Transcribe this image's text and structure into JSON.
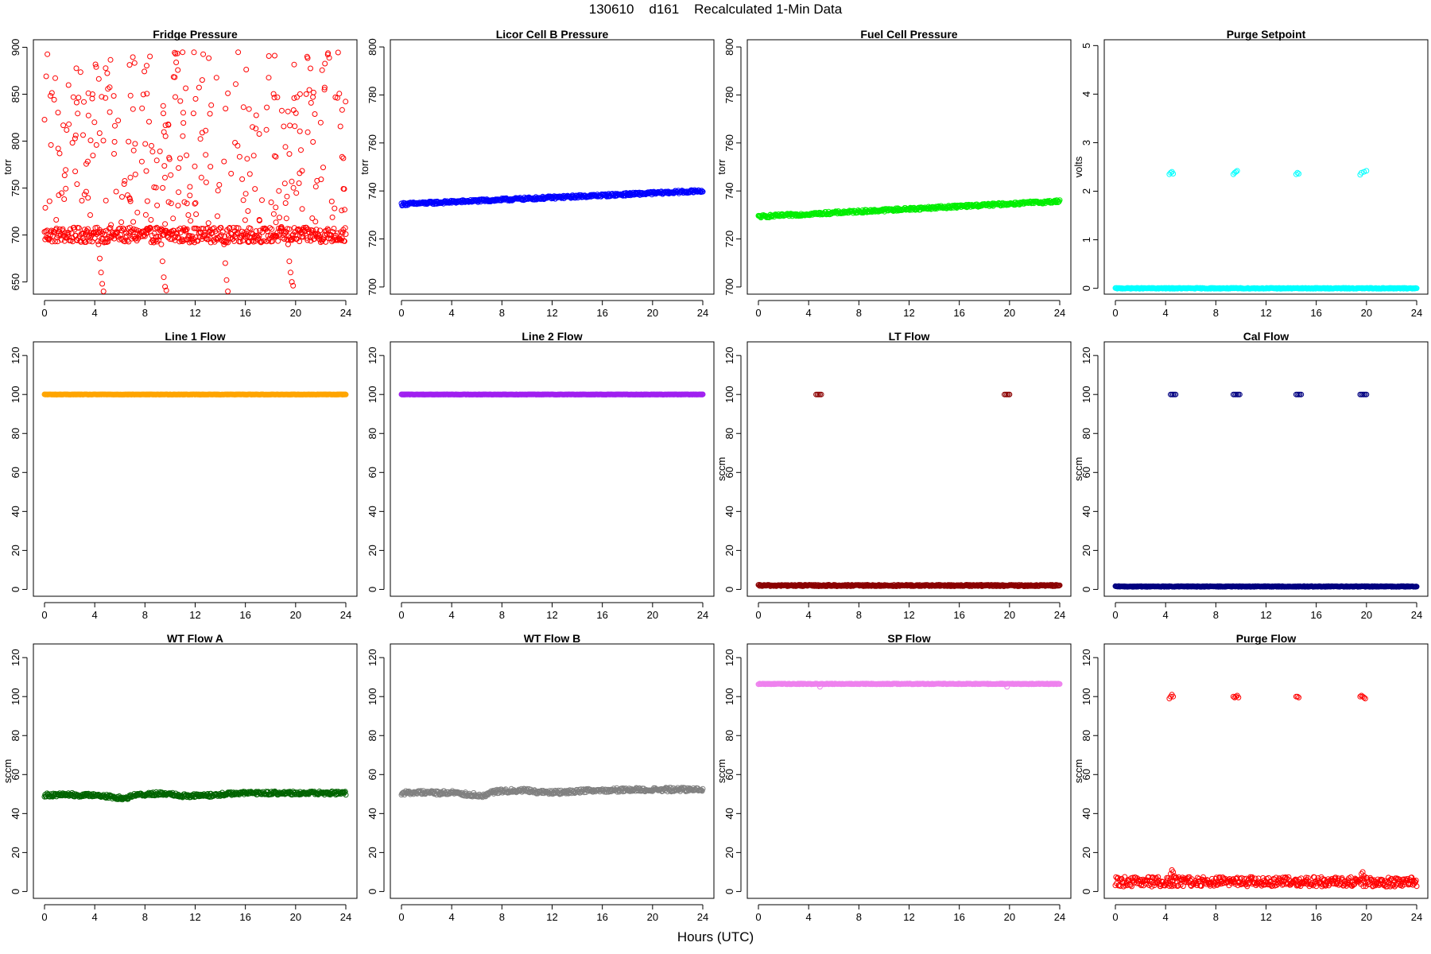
{
  "figure": {
    "title": "130610    d161    Recalculated 1-Min Data",
    "xlabel": "Hours (UTC)"
  },
  "chart_data": [
    {
      "type": "scatter",
      "title": "Fridge Pressure",
      "xlabel": "",
      "ylabel": "torr",
      "xlim": [
        0,
        24
      ],
      "ylim": [
        637,
        908
      ],
      "xticks": [
        0,
        4,
        8,
        12,
        16,
        20,
        24
      ],
      "yticks": [
        650,
        700,
        750,
        800,
        850,
        900
      ],
      "color": "#ff0000",
      "marker": "open-circle",
      "grid": false,
      "series": [
        {
          "kind": "band",
          "from": 0,
          "to": 24,
          "y": 700,
          "jitter": 8
        },
        {
          "kind": "scatter-range",
          "from": 0,
          "to": 24,
          "y_min": 705,
          "y_max": 895,
          "n": 300
        },
        {
          "kind": "points",
          "x": [
            4.3,
            4.4,
            4.5,
            4.6,
            4.7,
            9.3,
            9.4,
            9.5,
            9.6,
            9.7,
            14.3,
            14.4,
            14.5,
            14.6,
            19.4,
            19.5,
            19.6,
            19.7,
            19.8
          ],
          "y": [
            690,
            675,
            660,
            648,
            640,
            690,
            672,
            655,
            645,
            641,
            690,
            670,
            652,
            640,
            690,
            672,
            660,
            650,
            646
          ]
        }
      ]
    },
    {
      "type": "scatter",
      "title": "Licor Cell B Pressure",
      "xlabel": "",
      "ylabel": "torr",
      "xlim": [
        0,
        24
      ],
      "ylim": [
        697,
        803
      ],
      "xticks": [
        0,
        4,
        8,
        12,
        16,
        20,
        24
      ],
      "yticks": [
        700,
        720,
        740,
        760,
        780,
        800
      ],
      "color": "#0000ff",
      "marker": "open-circle",
      "grid": false,
      "series": [
        {
          "kind": "band",
          "from": 0,
          "to": 24,
          "y_start": 734.5,
          "y_end": 740.0,
          "jitter": 0.6
        }
      ]
    },
    {
      "type": "scatter",
      "title": "Fuel Cell Pressure",
      "xlabel": "",
      "ylabel": "torr",
      "xlim": [
        0,
        24
      ],
      "ylim": [
        697,
        803
      ],
      "xticks": [
        0,
        4,
        8,
        12,
        16,
        20,
        24
      ],
      "yticks": [
        700,
        720,
        740,
        760,
        780,
        800
      ],
      "color": "#00ee00",
      "marker": "open-circle",
      "grid": false,
      "series": [
        {
          "kind": "band",
          "from": 0,
          "to": 24,
          "y_start": 729.3,
          "y_end": 735.7,
          "jitter": 0.6
        }
      ]
    },
    {
      "type": "scatter",
      "title": "Purge Setpoint",
      "xlabel": "",
      "ylabel": "volts",
      "xlim": [
        0,
        24
      ],
      "ylim": [
        -0.12,
        5.12
      ],
      "xticks": [
        0,
        4,
        8,
        12,
        16,
        20,
        24
      ],
      "yticks": [
        0,
        1,
        2,
        3,
        4,
        5
      ],
      "color": "#00ffff",
      "marker": "open-circle",
      "grid": false,
      "series": [
        {
          "kind": "band",
          "from": 0,
          "to": 24,
          "y": 0,
          "jitter": 0.01
        },
        {
          "kind": "points",
          "x": [
            4.3,
            4.4,
            4.5,
            4.6,
            9.4,
            9.5,
            9.6,
            9.7,
            14.4,
            14.5,
            14.6,
            19.5,
            19.6,
            19.8,
            20.0
          ],
          "y": [
            2.35,
            2.38,
            2.4,
            2.36,
            2.35,
            2.38,
            2.4,
            2.42,
            2.35,
            2.38,
            2.36,
            2.34,
            2.38,
            2.4,
            2.42
          ]
        }
      ]
    },
    {
      "type": "scatter",
      "title": "Line 1 Flow",
      "xlabel": "",
      "ylabel": "",
      "xlim": [
        0,
        24
      ],
      "ylim": [
        -3.5,
        127
      ],
      "xticks": [
        0,
        4,
        8,
        12,
        16,
        20,
        24
      ],
      "yticks": [
        0,
        20,
        40,
        60,
        80,
        100,
        120
      ],
      "color": "#ffa500",
      "marker": "open-circle",
      "grid": false,
      "series": [
        {
          "kind": "band",
          "from": 0,
          "to": 24,
          "y": 100,
          "jitter": 0.1
        }
      ]
    },
    {
      "type": "scatter",
      "title": "Line 2 Flow",
      "xlabel": "",
      "ylabel": "",
      "xlim": [
        0,
        24
      ],
      "ylim": [
        -3.5,
        127
      ],
      "xticks": [
        0,
        4,
        8,
        12,
        16,
        20,
        24
      ],
      "yticks": [
        0,
        20,
        40,
        60,
        80,
        100,
        120
      ],
      "color": "#a020f0",
      "marker": "open-circle",
      "grid": false,
      "series": [
        {
          "kind": "band",
          "from": 0,
          "to": 24,
          "y": 100,
          "jitter": 0.1
        }
      ]
    },
    {
      "type": "scatter",
      "title": "LT Flow",
      "xlabel": "",
      "ylabel": "sccm",
      "xlim": [
        0,
        24
      ],
      "ylim": [
        -3.5,
        127
      ],
      "xticks": [
        0,
        4,
        8,
        12,
        16,
        20,
        24
      ],
      "yticks": [
        0,
        20,
        40,
        60,
        80,
        100,
        120
      ],
      "color": "#8b0000",
      "marker": "open-circle",
      "grid": false,
      "series": [
        {
          "kind": "band",
          "from": 0,
          "to": 24,
          "y": 2,
          "jitter": 0.4
        },
        {
          "kind": "points",
          "x": [
            4.6,
            4.7,
            4.8,
            4.9,
            5.0,
            19.6,
            19.7,
            19.8,
            19.9,
            20.0
          ],
          "y": [
            100,
            100,
            100,
            100,
            100,
            100,
            100,
            100,
            100,
            100
          ]
        }
      ]
    },
    {
      "type": "scatter",
      "title": "Cal Flow",
      "xlabel": "",
      "ylabel": "sccm",
      "xlim": [
        0,
        24
      ],
      "ylim": [
        -3.5,
        127
      ],
      "xticks": [
        0,
        4,
        8,
        12,
        16,
        20,
        24
      ],
      "yticks": [
        0,
        20,
        40,
        60,
        80,
        100,
        120
      ],
      "color": "#000080",
      "marker": "open-circle",
      "grid": false,
      "series": [
        {
          "kind": "band",
          "from": 0,
          "to": 24,
          "y": 1.5,
          "jitter": 0.2
        },
        {
          "kind": "points",
          "x": [
            4.4,
            4.5,
            4.6,
            4.7,
            4.8,
            9.4,
            9.5,
            9.6,
            9.7,
            9.8,
            9.9,
            14.4,
            14.5,
            14.6,
            14.7,
            14.8,
            19.5,
            19.6,
            19.7,
            19.8,
            19.9,
            20.0
          ],
          "y": [
            100,
            100,
            100,
            100,
            100,
            100,
            100,
            100,
            100,
            100,
            100,
            100,
            100,
            100,
            100,
            100,
            100,
            100,
            100,
            100,
            100,
            100
          ]
        }
      ]
    },
    {
      "type": "scatter",
      "title": "WT Flow A",
      "xlabel": "",
      "ylabel": "sccm",
      "xlim": [
        0,
        24
      ],
      "ylim": [
        -3.5,
        127
      ],
      "xticks": [
        0,
        4,
        8,
        12,
        16,
        20,
        24
      ],
      "yticks": [
        0,
        20,
        40,
        60,
        80,
        100,
        120
      ],
      "color": "#006400",
      "marker": "open-circle",
      "grid": false,
      "series": [
        {
          "kind": "profile",
          "x": [
            0,
            1,
            2,
            3,
            4,
            5,
            6,
            6.5,
            7,
            8,
            9,
            10,
            11,
            12,
            13,
            14,
            15,
            16,
            18,
            20,
            22,
            24
          ],
          "y": [
            49.5,
            49.5,
            49.8,
            49.3,
            49.5,
            48.8,
            48.0,
            47.8,
            49.5,
            49.8,
            50.2,
            50.2,
            49.2,
            49.2,
            49.3,
            49.8,
            50.3,
            50.5,
            50.5,
            50.5,
            50.5,
            50.5
          ],
          "jitter": 0.9
        }
      ]
    },
    {
      "type": "scatter",
      "title": "WT Flow B",
      "xlabel": "",
      "ylabel": "",
      "xlim": [
        0,
        24
      ],
      "ylim": [
        -3.5,
        127
      ],
      "xticks": [
        0,
        4,
        8,
        12,
        16,
        20,
        24
      ],
      "yticks": [
        0,
        20,
        40,
        60,
        80,
        100,
        120
      ],
      "color": "#808080",
      "marker": "open-circle",
      "grid": false,
      "series": [
        {
          "kind": "profile",
          "x": [
            0,
            1,
            2,
            3,
            4,
            5,
            6,
            6.5,
            7,
            8,
            9,
            10,
            11,
            12,
            13,
            14,
            15,
            16,
            18,
            20,
            22,
            24
          ],
          "y": [
            50.5,
            50.8,
            51.0,
            50.5,
            50.8,
            50.0,
            49.5,
            48.8,
            51.0,
            51.5,
            51.8,
            52.0,
            51.0,
            50.8,
            51.0,
            51.5,
            52.0,
            52.0,
            52.2,
            52.2,
            52.3,
            52.3
          ],
          "jitter": 1.0
        }
      ]
    },
    {
      "type": "scatter",
      "title": "SP Flow",
      "xlabel": "",
      "ylabel": "sccm",
      "xlim": [
        0,
        24
      ],
      "ylim": [
        -3.5,
        127
      ],
      "xticks": [
        0,
        4,
        8,
        12,
        16,
        20,
        24
      ],
      "yticks": [
        0,
        20,
        40,
        60,
        80,
        100,
        120
      ],
      "color": "#ee82ee",
      "marker": "open-circle",
      "grid": false,
      "series": [
        {
          "kind": "band",
          "from": 0,
          "to": 24,
          "y": 106.5,
          "jitter": 0.2
        },
        {
          "kind": "points",
          "x": [
            4.9,
            19.8
          ],
          "y": [
            105.0,
            105.0
          ]
        }
      ]
    },
    {
      "type": "scatter",
      "title": "Purge Flow",
      "xlabel": "",
      "ylabel": "sccm",
      "xlim": [
        0,
        24
      ],
      "ylim": [
        -3.5,
        127
      ],
      "xticks": [
        0,
        4,
        8,
        12,
        16,
        20,
        24
      ],
      "yticks": [
        0,
        20,
        40,
        60,
        80,
        100,
        120
      ],
      "color": "#ff0000",
      "marker": "open-circle",
      "grid": false,
      "series": [
        {
          "kind": "band",
          "from": 0,
          "to": 24,
          "y": 5,
          "jitter": 2.5
        },
        {
          "kind": "points",
          "x": [
            4.3,
            4.4,
            4.5,
            4.6,
            9.4,
            9.5,
            9.6,
            9.7,
            9.8,
            14.4,
            14.5,
            14.6,
            19.5,
            19.6,
            19.7,
            19.8,
            19.9
          ],
          "y": [
            99,
            100,
            101,
            100,
            100,
            99.5,
            100,
            100.5,
            99.5,
            100,
            100,
            99.5,
            100,
            100.5,
            100,
            99.5,
            99
          ]
        },
        {
          "kind": "points",
          "x": [
            4.4,
            4.5,
            4.6,
            4.7,
            19.6,
            19.7,
            19.8
          ],
          "y": [
            9,
            11,
            10,
            8,
            9,
            10,
            8
          ]
        }
      ]
    }
  ]
}
